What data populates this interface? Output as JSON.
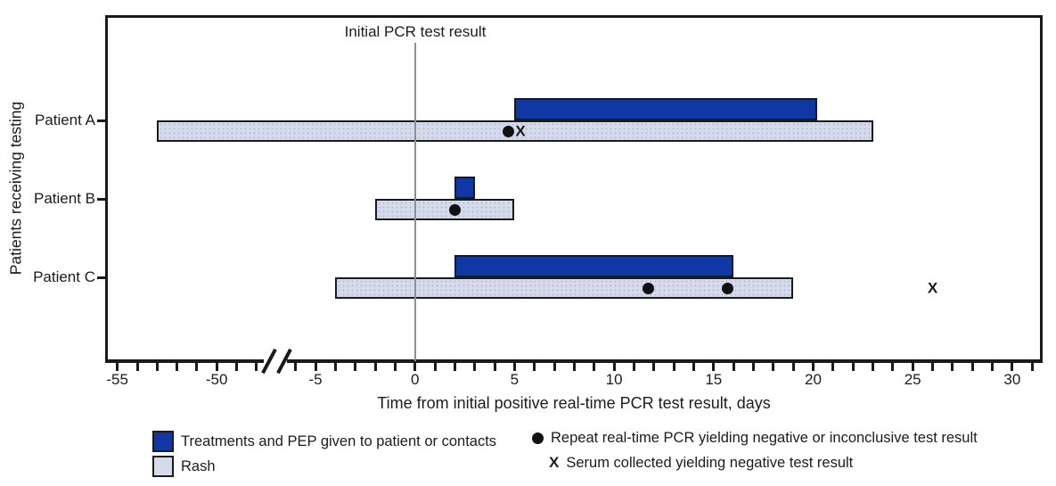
{
  "chart_data": {
    "type": "bar",
    "variant": "horizontal-gantt-timeline",
    "title_annotation": "Initial PCR test result",
    "xlabel": "Time from initial positive real-time PCR test result, days",
    "ylabel": "Patients receiving testing",
    "x_axis": {
      "major_ticks": [
        -55,
        -50,
        -5,
        0,
        5,
        10,
        15,
        20,
        25,
        30
      ],
      "minor_tick_interval": 1,
      "left_segment_range": [
        -55,
        -48
      ],
      "right_segment_range": [
        -6,
        31
      ],
      "axis_break_between": [
        -48,
        -6
      ],
      "reference_line_x": 0
    },
    "patients": [
      {
        "label": "Patient A",
        "treatment_span": [
          5,
          20.2
        ],
        "rash_span": [
          -53,
          23
        ],
        "repeat_pcr_days": [
          4.7
        ],
        "serum_days": [
          5.3
        ]
      },
      {
        "label": "Patient B",
        "treatment_span": [
          2,
          3
        ],
        "rash_span": [
          -2,
          5
        ],
        "repeat_pcr_days": [
          2
        ],
        "serum_days": []
      },
      {
        "label": "Patient C",
        "treatment_span": [
          2,
          16
        ],
        "rash_span": [
          -4,
          19
        ],
        "repeat_pcr_days": [
          11.7,
          15.7
        ],
        "serum_days": [
          26
        ]
      }
    ],
    "legend": [
      {
        "swatch": "treatment-square",
        "label": "Treatments and PEP given to patient or contacts"
      },
      {
        "swatch": "rash-square",
        "label": "Rash"
      },
      {
        "swatch": "dot",
        "label": "Repeat real-time PCR yielding negative or inconclusive test result"
      },
      {
        "swatch": "x",
        "label": "Serum collected yielding negative test result"
      }
    ],
    "colors": {
      "treatment": "#1137A5",
      "rash": "#D6DBEC",
      "marker": "#111111",
      "reference_line": "#8F8F8F",
      "axis": "#1A1A1A"
    }
  }
}
